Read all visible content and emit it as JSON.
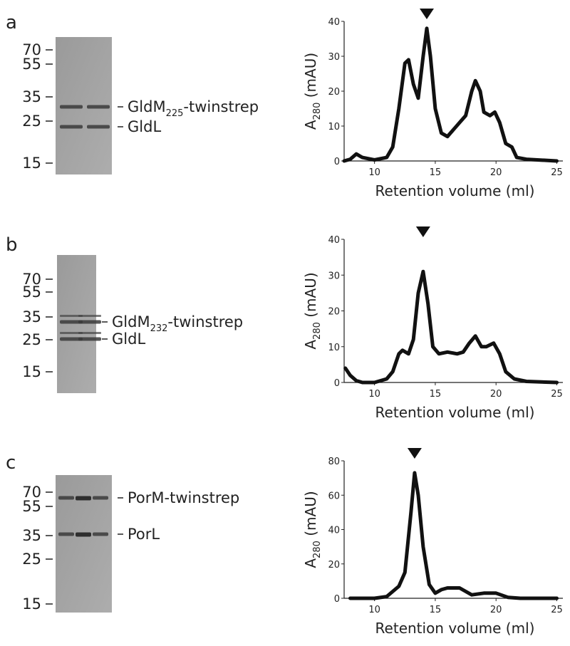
{
  "panels": [
    "a",
    "b",
    "c"
  ],
  "gels": [
    {
      "markers": [
        "70",
        "55",
        "35",
        "25",
        "15"
      ],
      "bands": [
        {
          "main": "GldM",
          "sub": "225",
          "rest": "-twinstrep"
        },
        {
          "main": "GldL"
        }
      ]
    },
    {
      "markers": [
        "70",
        "55",
        "35",
        "25",
        "15"
      ],
      "bands": [
        {
          "main": "GldM",
          "sub": "232",
          "rest": "-twinstrep"
        },
        {
          "main": "GldL"
        }
      ]
    },
    {
      "markers": [
        "70",
        "55",
        "35",
        "25",
        "15"
      ],
      "bands": [
        {
          "main": "PorM-twinstrep"
        },
        {
          "main": "PorL"
        }
      ]
    }
  ],
  "chart_data": [
    {
      "type": "line",
      "color": "#111111",
      "xlabel": "Retention volume (ml)",
      "ylabel": {
        "main": "A",
        "sub": "280",
        "rest": " (mAU)"
      },
      "xlim": [
        7.5,
        25.5
      ],
      "xticks": [
        10,
        15,
        20,
        25
      ],
      "ylim": [
        0,
        40
      ],
      "yticks": [
        0,
        10,
        20,
        30,
        40
      ],
      "marker_x": 14.3,
      "x": [
        7.5,
        8,
        8.5,
        9,
        10,
        11,
        11.5,
        12,
        12.5,
        12.8,
        13.2,
        13.6,
        14,
        14.3,
        14.6,
        15,
        15.5,
        16,
        16.5,
        17,
        17.5,
        18,
        18.3,
        18.7,
        19,
        19.5,
        19.9,
        20.3,
        20.8,
        21.3,
        21.7,
        22.5,
        25
      ],
      "values": [
        0,
        0.5,
        2,
        1,
        0.3,
        1,
        4,
        15,
        28,
        29,
        22,
        18,
        30,
        38,
        30,
        15,
        8,
        7,
        9,
        11,
        13,
        20,
        23,
        20,
        14,
        13,
        14,
        11,
        5,
        4,
        1,
        0.5,
        0
      ]
    },
    {
      "type": "line",
      "color": "#111111",
      "xlabel": "Retention volume (ml)",
      "ylabel": {
        "main": "A",
        "sub": "280",
        "rest": " (mAU)"
      },
      "xlim": [
        7.5,
        25.5
      ],
      "xticks": [
        10,
        15,
        20,
        25
      ],
      "ylim": [
        0,
        40
      ],
      "yticks": [
        0,
        10,
        20,
        30,
        40
      ],
      "marker_x": 14,
      "x": [
        7.6,
        8,
        8.5,
        9,
        10,
        11,
        11.5,
        12,
        12.3,
        12.8,
        13.2,
        13.6,
        14,
        14.4,
        14.8,
        15.3,
        16,
        16.8,
        17.3,
        17.8,
        18.3,
        18.8,
        19.2,
        19.8,
        20.3,
        20.8,
        21.5,
        22.5,
        25
      ],
      "values": [
        4,
        2,
        0.5,
        0,
        0,
        1,
        3,
        8,
        9,
        8,
        12,
        25,
        31,
        22,
        10,
        8,
        8.5,
        8,
        8.5,
        11,
        13,
        10,
        10,
        11,
        8,
        3,
        1,
        0.3,
        0
      ]
    },
    {
      "type": "line",
      "color": "#111111",
      "xlabel": "Retention volume (ml)",
      "ylabel": {
        "main": "A",
        "sub": "280",
        "rest": " (mAU)"
      },
      "xlim": [
        7.5,
        25.5
      ],
      "xticks": [
        10,
        15,
        20,
        25
      ],
      "ylim": [
        0,
        80
      ],
      "yticks": [
        0,
        20,
        40,
        60,
        80
      ],
      "marker_x": 13.3,
      "x": [
        8,
        10,
        11,
        12,
        12.5,
        13,
        13.3,
        13.6,
        14,
        14.5,
        15,
        15.5,
        16,
        17,
        18,
        19,
        20,
        21,
        22,
        25
      ],
      "values": [
        0,
        0,
        1,
        7,
        15,
        50,
        73,
        60,
        30,
        8,
        3,
        5,
        6,
        6,
        2,
        3,
        3,
        0.5,
        0,
        0
      ]
    }
  ]
}
